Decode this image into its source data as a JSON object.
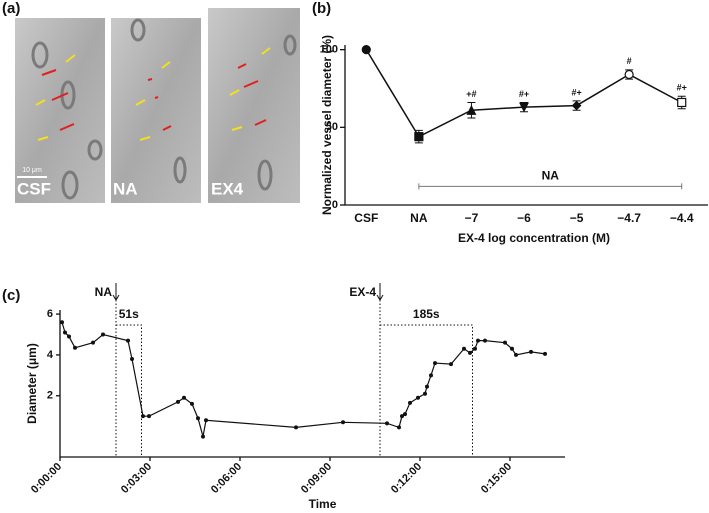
{
  "figure": {
    "panel_labels": [
      "(a)",
      "(b)",
      "(c)"
    ],
    "images": [
      "CSF",
      "NA",
      "EX4"
    ],
    "scale_bar": "10 μm"
  },
  "chart_data": [
    {
      "type": "line",
      "xlabel": "EX-4 log concentration (M)",
      "ylabel": "Normalized vessel diameter (%)",
      "categories": [
        "CSF",
        "NA",
        "−7",
        "−6",
        "−5",
        "−4.7",
        "−4.4"
      ],
      "values": [
        100,
        44,
        61,
        63,
        64,
        84,
        66
      ],
      "errors": [
        0,
        4,
        5,
        3,
        3,
        3,
        4
      ],
      "point_labels": [
        null,
        null,
        "+#",
        "#+",
        "#+",
        "#",
        "#+"
      ],
      "markers": [
        "circle",
        "square",
        "triangle",
        "triangle-down",
        "diamond",
        "circle-open",
        "square-open"
      ],
      "color": "#111111",
      "ylim": [
        0,
        103
      ],
      "yticks": [
        0,
        50,
        100
      ],
      "reference": {
        "label": "NA",
        "value": 12,
        "from": "NA",
        "to": "−4.4"
      }
    },
    {
      "type": "scatter-line",
      "xlabel": "Time",
      "ylabel": "Diameter (μm)",
      "color": "#111111",
      "x": [
        4,
        10,
        18,
        30,
        66,
        86,
        136,
        144,
        166,
        178,
        236,
        248,
        264,
        276,
        286,
        292,
        472,
        566,
        654,
        678,
        684,
        690,
        700,
        716,
        730,
        734,
        742,
        750,
        782,
        808,
        820,
        830,
        836,
        850,
        890,
        904,
        912,
        942,
        970
      ],
      "values": [
        5.6,
        5.1,
        4.9,
        4.35,
        4.6,
        5.0,
        4.7,
        3.8,
        1.0,
        1.0,
        1.7,
        1.9,
        1.6,
        0.9,
        0.0,
        0.8,
        0.45,
        0.7,
        0.65,
        0.45,
        1.0,
        1.1,
        1.65,
        1.9,
        2.1,
        2.45,
        3.0,
        3.6,
        3.55,
        4.3,
        4.1,
        4.3,
        4.7,
        4.7,
        4.6,
        4.3,
        4.0,
        4.15,
        4.05
      ],
      "xlim": [
        0,
        1010
      ],
      "ylim": [
        -1,
        6.2
      ],
      "yticks": [
        2,
        4,
        6
      ],
      "xticks": [
        {
          "value": 0,
          "label": "0:00:00"
        },
        {
          "value": 180,
          "label": "0:03:00"
        },
        {
          "value": 360,
          "label": "0:06:00"
        },
        {
          "value": 540,
          "label": "0:09:00"
        },
        {
          "value": 720,
          "label": "0:12:00"
        },
        {
          "value": 900,
          "label": "0:15:00"
        }
      ],
      "events": [
        {
          "label": "NA",
          "x": 112
        },
        {
          "label": "EX-4",
          "x": 640
        }
      ],
      "intervals": [
        {
          "label": "51s",
          "start": 112,
          "end": 163
        },
        {
          "label": "185s",
          "start": 640,
          "end": 825
        }
      ]
    }
  ]
}
